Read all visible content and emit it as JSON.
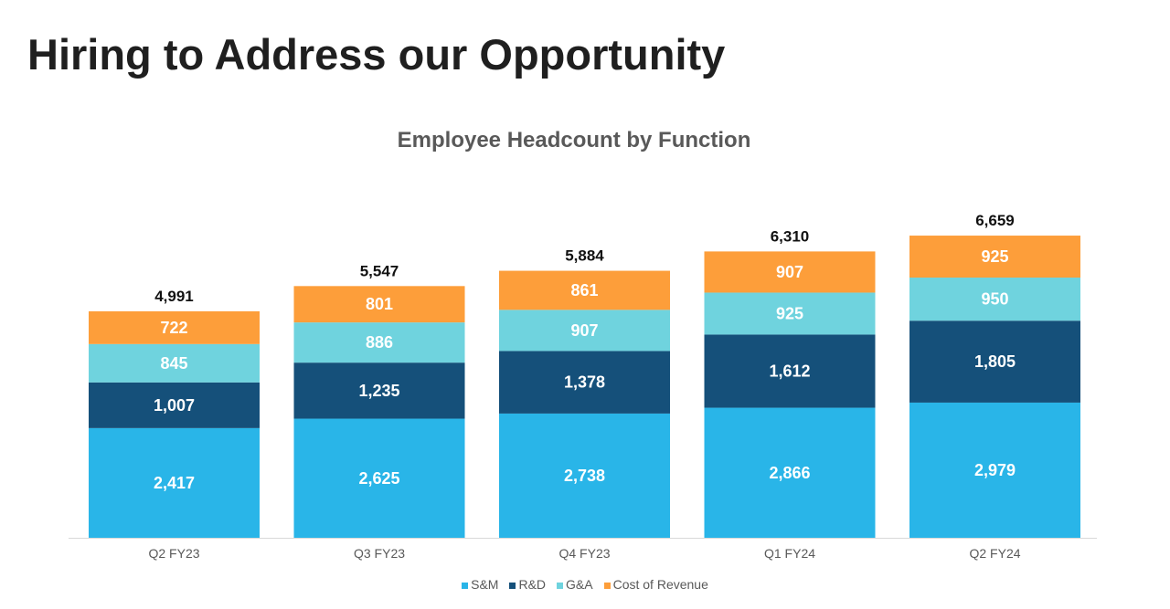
{
  "title": "Hiring to Address our Opportunity",
  "chart_data": {
    "type": "bar",
    "stacked": true,
    "title": "Employee Headcount by Function",
    "xlabel": "",
    "ylabel": "",
    "categories": [
      "Q2 FY23",
      "Q3 FY23",
      "Q4 FY23",
      "Q1 FY24",
      "Q2 FY24"
    ],
    "series": [
      {
        "name": "S&M",
        "color": "#29b5e8",
        "values": [
          2417,
          2625,
          2738,
          2866,
          2979
        ],
        "labels": [
          "2,417",
          "2,625",
          "2,738",
          "2,866",
          "2,979"
        ]
      },
      {
        "name": "R&D",
        "color": "#15507a",
        "values": [
          1007,
          1235,
          1378,
          1612,
          1805
        ],
        "labels": [
          "1,007",
          "1,235",
          "1,378",
          "1,612",
          "1,805"
        ]
      },
      {
        "name": "G&A",
        "color": "#6fd3de",
        "values": [
          845,
          886,
          907,
          925,
          950
        ],
        "labels": [
          "845",
          "886",
          "907",
          "925",
          "950"
        ]
      },
      {
        "name": "Cost of Revenue",
        "color": "#fd9e3a",
        "values": [
          722,
          801,
          861,
          907,
          925
        ],
        "labels": [
          "722",
          "801",
          "861",
          "907",
          "925"
        ]
      }
    ],
    "totals": [
      4991,
      5547,
      5884,
      6310,
      6659
    ],
    "total_labels": [
      "4,991",
      "5,547",
      "5,884",
      "6,310",
      "6,659"
    ],
    "legend_position": "bottom",
    "grid": false
  }
}
